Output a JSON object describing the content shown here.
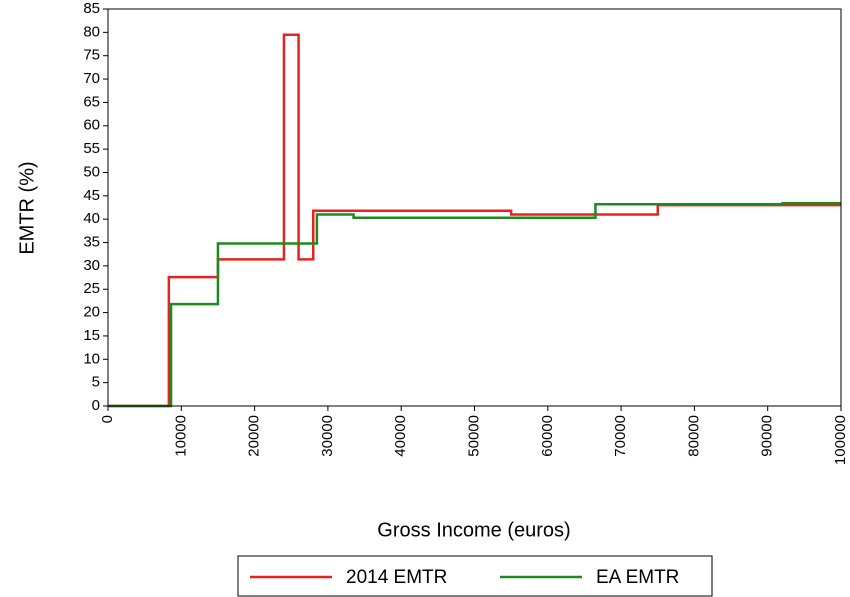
{
  "chart_data": {
    "type": "line",
    "step": "post",
    "xlabel": "Gross Income (euros)",
    "ylabel": "EMTR (%)",
    "xlim": [
      0,
      100000
    ],
    "ylim": [
      0,
      85
    ],
    "xticks": [
      0,
      10000,
      20000,
      30000,
      40000,
      50000,
      60000,
      70000,
      80000,
      90000,
      100000
    ],
    "yticks": [
      0,
      5,
      10,
      15,
      20,
      25,
      30,
      35,
      40,
      45,
      50,
      55,
      60,
      65,
      70,
      75,
      80,
      85
    ],
    "grid": false,
    "legend": "bottom",
    "series": [
      {
        "name": "2014 EMTR",
        "color": "#e8231f",
        "x": [
          0,
          8300,
          15000,
          24000,
          26000,
          28000,
          55000,
          75000,
          100000
        ],
        "values": [
          0,
          27.6,
          31.4,
          79.5,
          31.4,
          41.8,
          41,
          43,
          43
        ]
      },
      {
        "name": "EA EMTR",
        "color": "#1e8a1e",
        "x": [
          0,
          8600,
          15000,
          28500,
          33500,
          66500,
          92000,
          100000
        ],
        "values": [
          0,
          21.8,
          34.8,
          41,
          40.3,
          43.2,
          43.4,
          43.4
        ]
      }
    ]
  }
}
